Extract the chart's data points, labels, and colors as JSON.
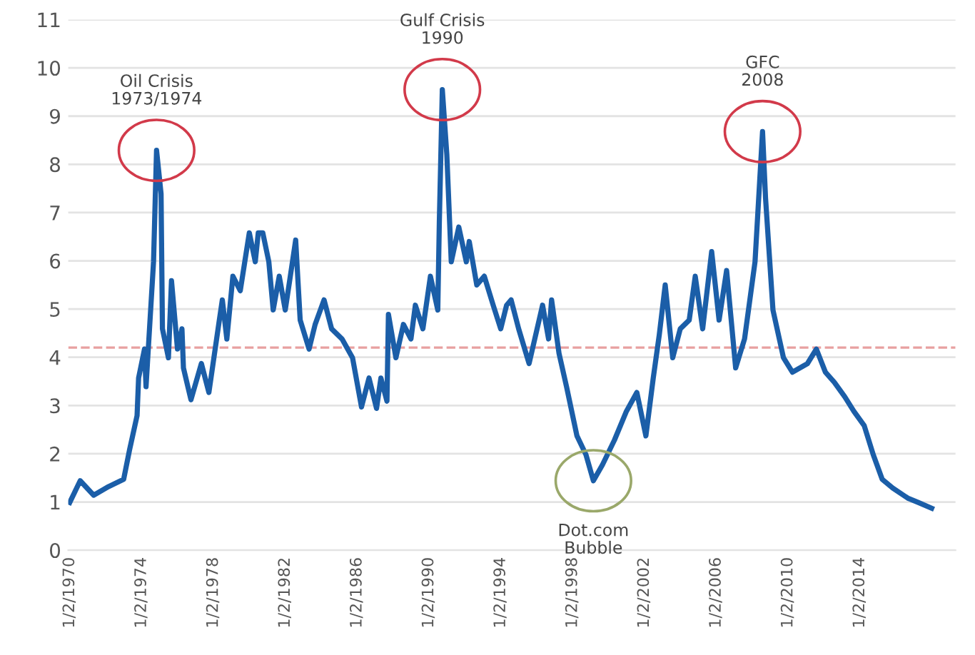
{
  "chart_data": {
    "type": "line",
    "x": [
      "1970-01",
      "1970-08",
      "1971-05",
      "1972-03",
      "1973-01",
      "1973-05",
      "1973-10",
      "1973-11",
      "1974-03",
      "1974-04",
      "1974-09",
      "1974-11",
      "1975-02",
      "1975-03",
      "1975-07",
      "1975-09",
      "1976-01",
      "1976-04",
      "1976-05",
      "1976-10",
      "1977-05",
      "1977-10",
      "1978-05",
      "1978-07",
      "1978-10",
      "1979-02",
      "1979-07",
      "1979-10",
      "1980-01",
      "1980-05",
      "1980-07",
      "1980-10",
      "1981-02",
      "1981-05",
      "1981-09",
      "1982-01",
      "1982-04",
      "1982-08",
      "1982-11",
      "1983-05",
      "1983-09",
      "1984-03",
      "1984-08",
      "1985-03",
      "1985-10",
      "1986-04",
      "1986-09",
      "1987-02",
      "1987-05",
      "1987-09",
      "1987-10",
      "1988-03",
      "1988-08",
      "1989-01",
      "1989-04",
      "1989-09",
      "1990-02",
      "1990-07",
      "1990-08",
      "1990-10",
      "1991-01",
      "1991-04",
      "1991-09",
      "1992-02",
      "1992-04",
      "1992-09",
      "1993-02",
      "1993-08",
      "1994-01",
      "1994-05",
      "1994-08",
      "1995-01",
      "1995-08",
      "1996-05",
      "1996-09",
      "1996-11",
      "1997-04",
      "1997-09",
      "1998-04",
      "1998-10",
      "1999-03",
      "1999-09",
      "2000-05",
      "2001-01",
      "2001-08",
      "2002-02",
      "2002-07",
      "2002-11",
      "2003-03",
      "2003-08",
      "2004-01",
      "2004-07",
      "2004-11",
      "2005-04",
      "2005-10",
      "2006-03",
      "2006-08",
      "2007-02",
      "2007-08",
      "2008-03",
      "2008-08",
      "2008-10",
      "2009-03",
      "2009-10",
      "2010-04",
      "2011-02",
      "2011-08",
      "2012-02",
      "2012-08",
      "2013-03",
      "2013-09",
      "2014-04",
      "2014-10",
      "2015-04",
      "2015-11",
      "2016-09",
      "2017-04",
      "2018-01"
    ],
    "series": [
      {
        "color": "#1b5ea8",
        "values": [
          0.99,
          1.44,
          1.14,
          1.32,
          1.47,
          2.08,
          2.79,
          3.57,
          4.17,
          3.39,
          5.98,
          8.29,
          7.39,
          4.59,
          3.99,
          5.59,
          4.17,
          4.59,
          3.78,
          3.12,
          3.87,
          3.27,
          4.77,
          5.19,
          4.38,
          5.68,
          5.38,
          5.98,
          6.58,
          5.98,
          6.58,
          6.58,
          5.98,
          4.98,
          5.68,
          4.98,
          5.59,
          6.43,
          4.77,
          4.17,
          4.68,
          5.19,
          4.59,
          4.38,
          3.99,
          2.97,
          3.57,
          2.94,
          3.57,
          3.09,
          4.89,
          3.99,
          4.68,
          4.38,
          5.08,
          4.59,
          5.68,
          4.98,
          6.79,
          9.55,
          8.2,
          5.98,
          6.7,
          5.98,
          6.4,
          5.5,
          5.68,
          5.08,
          4.59,
          5.08,
          5.19,
          4.59,
          3.87,
          5.08,
          4.38,
          5.19,
          4.08,
          3.39,
          2.37,
          1.98,
          1.44,
          1.77,
          2.28,
          2.88,
          3.27,
          2.37,
          3.57,
          4.47,
          5.5,
          3.99,
          4.59,
          4.77,
          5.68,
          4.59,
          6.19,
          4.77,
          5.8,
          3.78,
          4.38,
          5.98,
          8.68,
          7.3,
          4.98,
          3.99,
          3.69,
          3.87,
          4.17,
          3.69,
          3.48,
          3.18,
          2.88,
          2.58,
          1.98,
          1.47,
          1.29,
          1.08,
          0.99,
          0.87
        ]
      }
    ],
    "xlim": [
      "1969-12",
      "2019-05"
    ],
    "xticks": [
      {
        "value": "1970-01-02",
        "label": "1/2/1970"
      },
      {
        "value": "1974-01-02",
        "label": "1/2/1974"
      },
      {
        "value": "1978-01-02",
        "label": "1/2/1978"
      },
      {
        "value": "1982-01-02",
        "label": "1/2/1982"
      },
      {
        "value": "1986-01-02",
        "label": "1/2/1986"
      },
      {
        "value": "1990-01-02",
        "label": "1/2/1990"
      },
      {
        "value": "1994-01-02",
        "label": "1/2/1994"
      },
      {
        "value": "1998-01-02",
        "label": "1/2/1998"
      },
      {
        "value": "2002-01-02",
        "label": "1/2/2002"
      },
      {
        "value": "2006-01-02",
        "label": "1/2/2006"
      },
      {
        "value": "2010-01-02",
        "label": "1/2/2010"
      },
      {
        "value": "2014-01-02",
        "label": "1/2/2014"
      }
    ],
    "ylim": [
      0,
      11
    ],
    "yticks": [
      0,
      1,
      2,
      3,
      4,
      5,
      6,
      7,
      8,
      9,
      10,
      11
    ],
    "grid": "y",
    "line_style": "solid",
    "ref_lines": [
      {
        "axis": "y",
        "value": 4.2,
        "color": "#e8a0a0",
        "line_style": "dashed"
      }
    ],
    "annotations": [
      {
        "text": "Oil Crisis\n1973/1974",
        "x": "1974-11",
        "y": 8.29
      },
      {
        "text": "Gulf Crisis\n1990",
        "x": "1990-10",
        "y": 9.55
      },
      {
        "text": "GFC\n2008",
        "x": "2008-08",
        "y": 8.68
      },
      {
        "text": "Dot.com\nBubble",
        "x": "1999-03",
        "y": 1.44
      }
    ]
  }
}
